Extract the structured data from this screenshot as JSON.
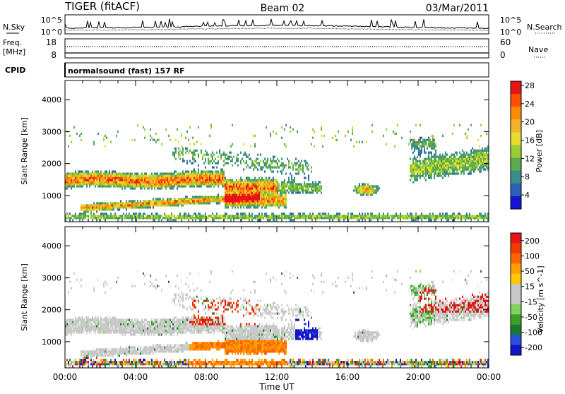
{
  "header": {
    "station": "TIGER (fitACF)",
    "beam": "Beam 02",
    "date": "03/Mar/2011"
  },
  "strip": {
    "nsky_label": "N.Sky",
    "nsky_ticks": [
      "10^5",
      "10^0"
    ],
    "nsearch_label": "N.Search",
    "nsearch_ticks": [
      "10^5",
      "10^0"
    ],
    "freq_label": "Freq.",
    "freq_unit": "[MHz]",
    "freq_ticks": [
      "18",
      "8"
    ],
    "nave_label": "Nave",
    "nave_ticks": [
      "60",
      "0"
    ],
    "cpid_label": "CPID",
    "cpid_text": "normalsound (fast) 157 RF"
  },
  "chart_data": [
    {
      "type": "heatmap",
      "panel": "power",
      "ylabel": "Slant Range [km]",
      "ylim": [
        180,
        4600
      ],
      "yticks": [
        "1000",
        "2000",
        "3000",
        "4000"
      ],
      "xlim": [
        "00:00",
        "24:00"
      ],
      "colorbar": {
        "label": "Power [dB]",
        "tick_labels": [
          "4",
          "8",
          "12",
          "16",
          "20",
          "24",
          "28"
        ],
        "colors": [
          "#1414d2",
          "#2a62b8",
          "#3c8c8c",
          "#5aaa50",
          "#9acd32",
          "#e6dc2d",
          "#f0b42d",
          "#ff8c00",
          "#ff5000",
          "#e61414"
        ]
      }
    },
    {
      "type": "heatmap",
      "panel": "velocity",
      "ylabel": "Slant Range [km]",
      "ylim": [
        180,
        4600
      ],
      "yticks": [
        "1000",
        "2000",
        "3000",
        "4000"
      ],
      "xlim": [
        "00:00",
        "24:00"
      ],
      "colorbar": {
        "label": "Velocity [m s^-1]",
        "tick_labels": [
          "200",
          "100",
          "50",
          "15",
          "-15",
          "-50",
          "-100",
          "-200"
        ],
        "colors": [
          "#1414c8",
          "#2850dc",
          "#1e7832",
          "#3ca028",
          "#82d264",
          "#c8c8c8",
          "#c8c8c8",
          "#ffc800",
          "#ffa000",
          "#ff6400",
          "#f03c00",
          "#e61414"
        ]
      }
    }
  ],
  "time_axis": {
    "ticks": [
      "00:00",
      "04:00",
      "08:00",
      "12:00",
      "16:00",
      "20:00",
      "00:00"
    ],
    "xlabel": "Time UT"
  }
}
